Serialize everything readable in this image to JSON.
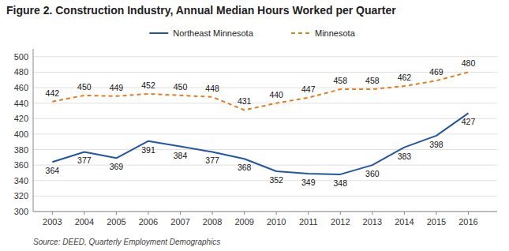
{
  "chart_data": {
    "type": "line",
    "title": "Figure 2. Construction Industry, Annual Median Hours Worked per Quarter",
    "x": [
      2003,
      2004,
      2005,
      2006,
      2007,
      2008,
      2009,
      2010,
      2011,
      2012,
      2013,
      2014,
      2015,
      2016
    ],
    "xlim": [
      2002.4,
      2016.9
    ],
    "xticks": [
      2003,
      2004,
      2005,
      2006,
      2007,
      2008,
      2009,
      2010,
      2011,
      2012,
      2013,
      2014,
      2015,
      2016
    ],
    "ylim": [
      300,
      510
    ],
    "yticks": [
      300,
      320,
      340,
      360,
      380,
      400,
      420,
      440,
      460,
      480,
      500
    ],
    "series": [
      {
        "name": "Northeast Minnesota",
        "color": "#2255a4",
        "line_style": "solid",
        "values": [
          364,
          377,
          369,
          391,
          384,
          377,
          368,
          352,
          349,
          348,
          360,
          383,
          398,
          427
        ]
      },
      {
        "name": "Minnesota",
        "color": "#e08020",
        "line_style": "dashed",
        "values": [
          442,
          450,
          449,
          452,
          450,
          448,
          431,
          440,
          447,
          458,
          458,
          462,
          469,
          480
        ]
      }
    ],
    "data_labels": true,
    "grid": true,
    "legend": "top",
    "annotations": [
      "Source: DEED, Quarterly Employment Demographics"
    ]
  }
}
